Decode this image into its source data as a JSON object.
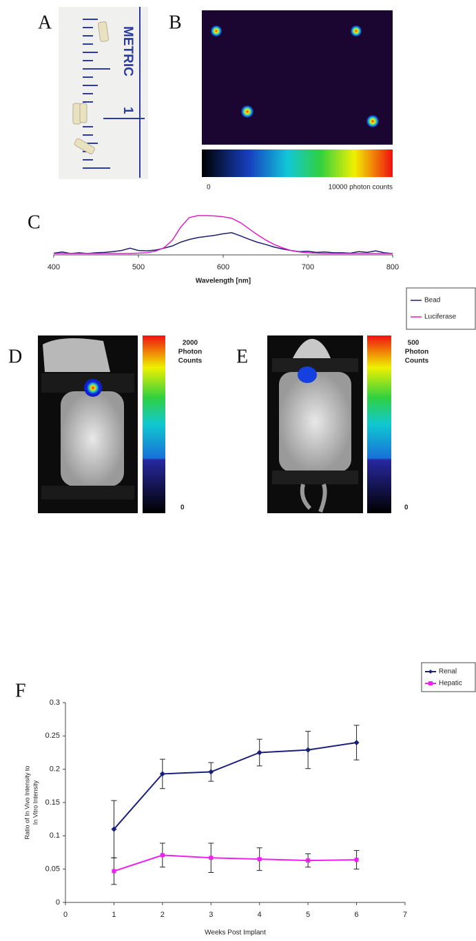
{
  "panels": {
    "A": {
      "label": "A",
      "ruler_text": "METRIC",
      "ruler_number": "1"
    },
    "B": {
      "label": "B",
      "colorbar_min": "0",
      "colorbar_max": "10000 photon counts"
    },
    "D": {
      "label": "D",
      "colorbar_top": [
        "2000",
        "Photon",
        "Counts"
      ],
      "colorbar_min": "0"
    },
    "E": {
      "label": "E",
      "colorbar_top": [
        "500",
        "Photon",
        "Counts"
      ],
      "colorbar_min": "0"
    }
  },
  "chart_data": [
    {
      "type": "line",
      "label": "C",
      "xlabel": "Wavelength [nm]",
      "x": [
        400,
        410,
        420,
        430,
        440,
        450,
        460,
        470,
        480,
        490,
        500,
        510,
        520,
        530,
        540,
        550,
        560,
        570,
        580,
        590,
        600,
        610,
        620,
        630,
        640,
        650,
        660,
        670,
        680,
        690,
        700,
        710,
        720,
        730,
        740,
        750,
        760,
        770,
        780,
        790,
        800
      ],
      "xlim": [
        400,
        800
      ],
      "xticks": [
        400,
        500,
        600,
        700,
        800
      ],
      "ylim": [
        0,
        1
      ],
      "series": [
        {
          "name": "Bead",
          "color": "#1c1c70",
          "values": [
            0.01,
            0.04,
            0.0,
            0.02,
            0.0,
            0.02,
            0.03,
            0.05,
            0.08,
            0.14,
            0.08,
            0.07,
            0.09,
            0.14,
            0.2,
            0.3,
            0.37,
            0.42,
            0.45,
            0.48,
            0.52,
            0.55,
            0.47,
            0.38,
            0.3,
            0.24,
            0.17,
            0.12,
            0.08,
            0.05,
            0.06,
            0.03,
            0.04,
            0.02,
            0.02,
            0.01,
            0.05,
            0.03,
            0.07,
            0.02,
            0.0
          ]
        },
        {
          "name": "Luciferase",
          "color": "#e01ec8",
          "values": [
            0,
            0,
            0,
            0,
            0,
            0,
            0,
            0,
            0,
            0,
            0.01,
            0.02,
            0.06,
            0.15,
            0.35,
            0.7,
            0.95,
            1,
            1,
            0.99,
            0.97,
            0.93,
            0.82,
            0.66,
            0.5,
            0.36,
            0.24,
            0.15,
            0.08,
            0.04,
            0.02,
            0.01,
            0,
            0,
            0,
            0,
            0,
            0,
            0,
            0,
            0
          ]
        }
      ]
    },
    {
      "type": "errorline",
      "label": "F",
      "xlabel": "Weeks Post Implant",
      "ylabel": [
        "Ratio of In Vivo Intensity to",
        "In Vitro Intensity"
      ],
      "x": [
        1,
        2,
        3,
        4,
        5,
        6
      ],
      "xlim": [
        0,
        7
      ],
      "xticks": [
        0,
        1,
        2,
        3,
        4,
        5,
        6,
        7
      ],
      "ylim": [
        0,
        0.3
      ],
      "yticks": [
        0,
        0.05,
        0.1,
        0.15,
        0.2,
        0.25,
        0.3
      ],
      "series": [
        {
          "name": "Renal",
          "color": "#1a1f78",
          "marker": "diamond",
          "values": [
            0.11,
            0.193,
            0.196,
            0.225,
            0.229,
            0.24
          ],
          "errors": [
            0.043,
            0.022,
            0.014,
            0.02,
            0.028,
            0.026
          ]
        },
        {
          "name": "Hepatic",
          "color": "#f01ef0",
          "marker": "square",
          "values": [
            0.047,
            0.071,
            0.067,
            0.065,
            0.063,
            0.064
          ],
          "errors": [
            0.02,
            0.018,
            0.022,
            0.017,
            0.01,
            0.014
          ]
        }
      ]
    }
  ]
}
